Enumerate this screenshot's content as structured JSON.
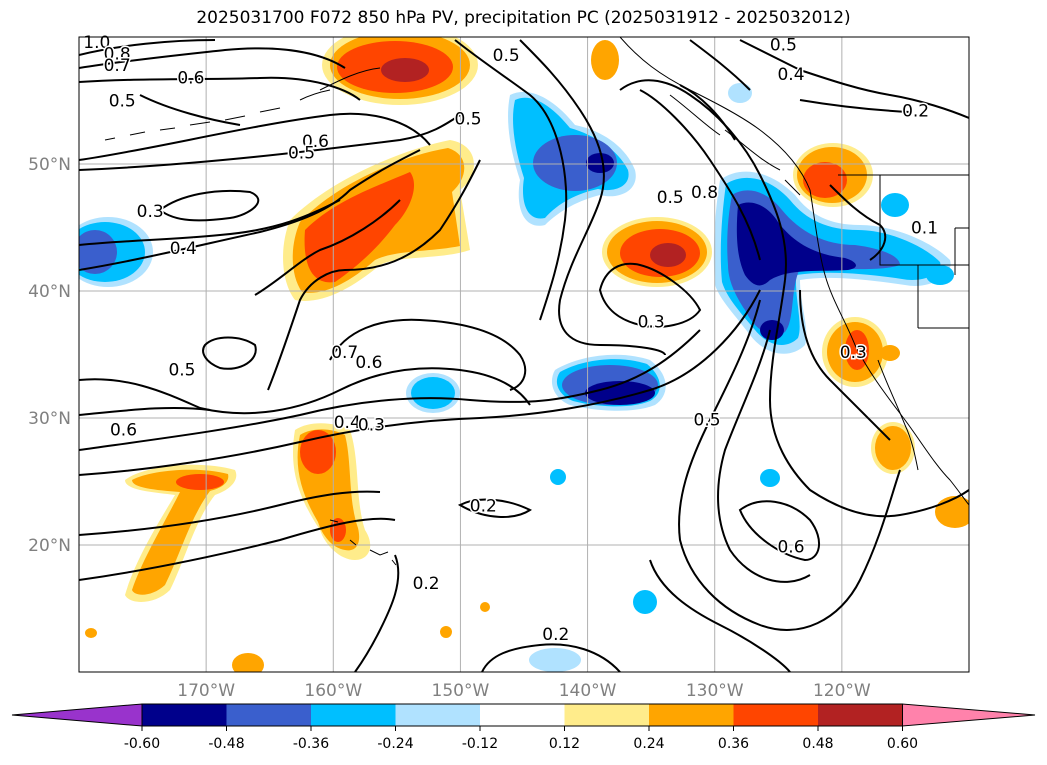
{
  "title": "2025031700 F072 850 hPa PV, precipitation PC (2025031912 - 2025032012)",
  "map": {
    "lon_min": -180,
    "lon_max": -110,
    "lat_min": 10,
    "lat_max": 60,
    "lat_labels": [
      {
        "value": 50,
        "text": "50°N"
      },
      {
        "value": 40,
        "text": "40°N"
      },
      {
        "value": 30,
        "text": "30°N"
      },
      {
        "value": 20,
        "text": "20°N"
      }
    ],
    "lon_labels": [
      {
        "value": -170,
        "text": "170°W"
      },
      {
        "value": -160,
        "text": "160°W"
      },
      {
        "value": -150,
        "text": "150°W"
      },
      {
        "value": -140,
        "text": "140°W"
      },
      {
        "value": -130,
        "text": "130°W"
      },
      {
        "value": -120,
        "text": "120°W"
      }
    ],
    "gridline_color": "#b0b0b0",
    "tick_label_color": "#808080"
  },
  "contour_labels": [
    {
      "text": "1.0",
      "lon": -178.6,
      "lat": 59.6
    },
    {
      "text": "0.8",
      "lon": -177.0,
      "lat": 58.7
    },
    {
      "text": "0.7",
      "lon": -177.0,
      "lat": 57.8
    },
    {
      "text": "0.5",
      "lon": -176.6,
      "lat": 55.0
    },
    {
      "text": "0.6",
      "lon": -171.2,
      "lat": 56.8
    },
    {
      "text": "0.5",
      "lon": -146.4,
      "lat": 58.6
    },
    {
      "text": "0.5",
      "lon": -149.4,
      "lat": 53.6
    },
    {
      "text": "0.6",
      "lon": -161.4,
      "lat": 51.8
    },
    {
      "text": "0.5",
      "lon": -162.5,
      "lat": 50.9
    },
    {
      "text": "0.3",
      "lon": -174.4,
      "lat": 46.3
    },
    {
      "text": "0.4",
      "lon": -171.8,
      "lat": 43.4
    },
    {
      "text": "0.5",
      "lon": -171.9,
      "lat": 33.8
    },
    {
      "text": "0.7",
      "lon": -159.1,
      "lat": 35.2
    },
    {
      "text": "0.6",
      "lon": -157.2,
      "lat": 34.4
    },
    {
      "text": "0.6",
      "lon": -176.5,
      "lat": 29.1
    },
    {
      "text": "0.4",
      "lon": -158.9,
      "lat": 29.7
    },
    {
      "text": "0.3",
      "lon": -157.0,
      "lat": 29.5
    },
    {
      "text": "0.2",
      "lon": -148.2,
      "lat": 23.1
    },
    {
      "text": "0.2",
      "lon": -152.7,
      "lat": 17.0
    },
    {
      "text": "0.2",
      "lon": -142.5,
      "lat": 13.0
    },
    {
      "text": "0.3",
      "lon": -135.0,
      "lat": 37.6
    },
    {
      "text": "0.5",
      "lon": -133.5,
      "lat": 47.4
    },
    {
      "text": "0.8",
      "lon": -130.8,
      "lat": 47.8
    },
    {
      "text": "0.5",
      "lon": -124.6,
      "lat": 59.4
    },
    {
      "text": "0.4",
      "lon": -124.0,
      "lat": 57.1
    },
    {
      "text": "0.2",
      "lon": -114.2,
      "lat": 54.2
    },
    {
      "text": "0.1",
      "lon": -113.5,
      "lat": 45.0
    },
    {
      "text": "0.5",
      "lon": -130.6,
      "lat": 29.9
    },
    {
      "text": "0.6",
      "lon": -124.0,
      "lat": 19.9
    },
    {
      "text": "0.3",
      "lon": -119.1,
      "lat": 35.2
    }
  ],
  "colorbar": {
    "colors": [
      "#9933cc",
      "#00008b",
      "#3a5fcd",
      "#00bfff",
      "#b0e2ff",
      "#ffffff",
      "#ffec8b",
      "#ffa500",
      "#ff4500",
      "#b22222",
      "#ff82ab"
    ],
    "labels": [
      "-0.60",
      "-0.48",
      "-0.36",
      "-0.24",
      "-0.12",
      "0.12",
      "0.24",
      "0.36",
      "0.48",
      "0.60"
    ]
  },
  "precip_colors": {
    "light_blue": "#b0e2ff",
    "blue": "#00bfff",
    "mid_blue": "#3a5fcd",
    "dark_blue": "#00008b",
    "yellow": "#ffec8b",
    "orange": "#ffa500",
    "red_orange": "#ff4500",
    "dark_red": "#b22222"
  }
}
